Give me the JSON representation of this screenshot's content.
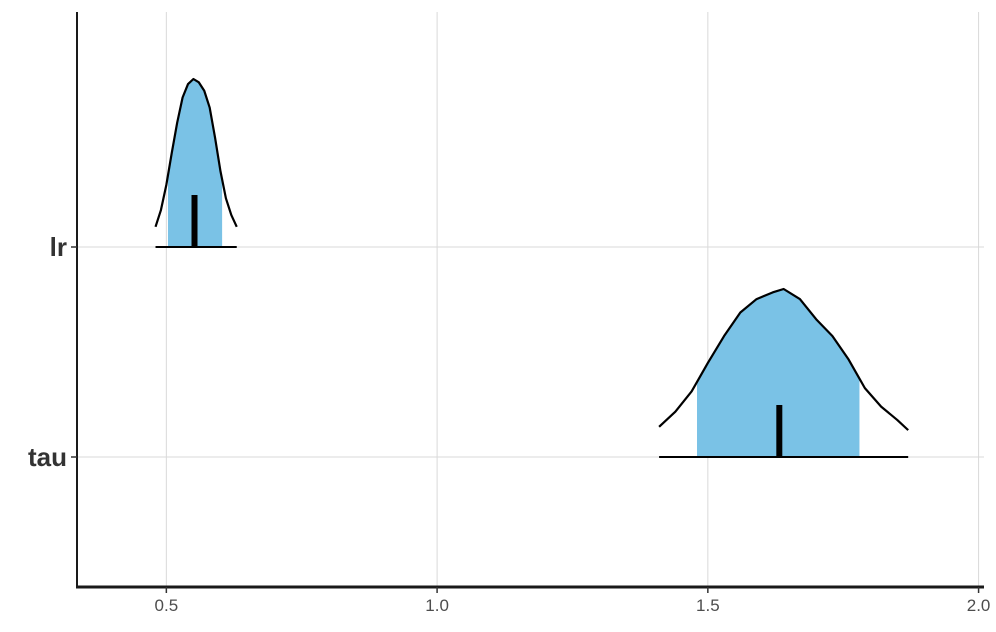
{
  "chart_data": {
    "type": "area",
    "title": "",
    "xlabel": "",
    "ylabel": "",
    "xlim": [
      0.335,
      2.01
    ],
    "x_ticks": [
      0.5,
      1.0,
      1.5,
      2.0
    ],
    "x_tick_labels": [
      "0.5",
      "1.0",
      "1.5",
      "2.0"
    ],
    "categories": [
      "lr",
      "tau"
    ],
    "grid": true,
    "fill_color": "#7ac2e6",
    "line_color": "#000000",
    "series": [
      {
        "category": "lr",
        "median": 0.552,
        "inner_interval": [
          0.503,
          0.603
        ],
        "outer_interval": [
          0.48,
          0.63
        ],
        "density": [
          [
            0.48,
            0.12
          ],
          [
            0.49,
            0.22
          ],
          [
            0.5,
            0.37
          ],
          [
            0.51,
            0.56
          ],
          [
            0.52,
            0.74
          ],
          [
            0.53,
            0.89
          ],
          [
            0.54,
            0.97
          ],
          [
            0.55,
            1.0
          ],
          [
            0.56,
            0.98
          ],
          [
            0.57,
            0.93
          ],
          [
            0.58,
            0.83
          ],
          [
            0.59,
            0.65
          ],
          [
            0.6,
            0.45
          ],
          [
            0.61,
            0.29
          ],
          [
            0.62,
            0.19
          ],
          [
            0.63,
            0.12
          ]
        ]
      },
      {
        "category": "tau",
        "median": 1.632,
        "inner_interval": [
          1.48,
          1.78
        ],
        "outer_interval": [
          1.41,
          1.87
        ],
        "density": [
          [
            1.41,
            0.18
          ],
          [
            1.44,
            0.27
          ],
          [
            1.47,
            0.39
          ],
          [
            1.5,
            0.56
          ],
          [
            1.53,
            0.72
          ],
          [
            1.56,
            0.86
          ],
          [
            1.59,
            0.94
          ],
          [
            1.62,
            0.98
          ],
          [
            1.64,
            1.0
          ],
          [
            1.67,
            0.94
          ],
          [
            1.7,
            0.82
          ],
          [
            1.73,
            0.72
          ],
          [
            1.76,
            0.58
          ],
          [
            1.79,
            0.41
          ],
          [
            1.82,
            0.3
          ],
          [
            1.85,
            0.22
          ],
          [
            1.87,
            0.16
          ]
        ]
      }
    ]
  }
}
